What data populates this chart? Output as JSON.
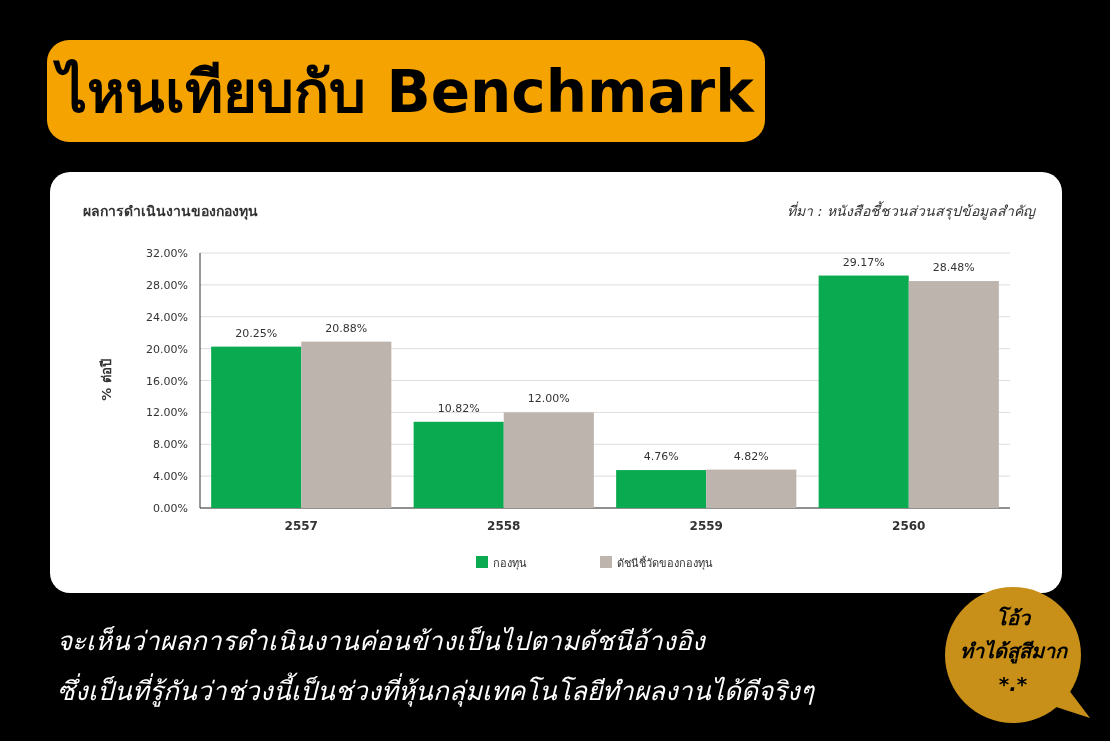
{
  "chart_data": {
    "type": "bar",
    "title": "ไหนเทียบกับ Benchmark",
    "subtitle": "ผลการดำเนินงานของกองทุน",
    "ylabel": "% ต่อปี",
    "categories": [
      "2557",
      "2558",
      "2559",
      "2560"
    ],
    "series": [
      {
        "name": "กองทุน",
        "color": "#0aaa50",
        "values": [
          20.25,
          10.82,
          4.76,
          29.17
        ],
        "value_labels": [
          "20.25%",
          "10.82%",
          "4.76%",
          "29.17%"
        ]
      },
      {
        "name": "ดัชนีชี้วัดของกองทุน",
        "color": "#bdb4ae",
        "values": [
          20.88,
          12.0,
          4.82,
          28.48
        ],
        "value_labels": [
          "20.88%",
          "12.00%",
          "4.82%",
          "28.48%"
        ]
      }
    ],
    "ylim": [
      0,
      32
    ],
    "yticks": [
      {
        "value": 0,
        "label": "0.00%"
      },
      {
        "value": 4,
        "label": "4.00%"
      },
      {
        "value": 8,
        "label": "8.00%"
      },
      {
        "value": 12,
        "label": "12.00%"
      },
      {
        "value": 16,
        "label": "16.00%"
      },
      {
        "value": 20,
        "label": "20.00%"
      },
      {
        "value": 24,
        "label": "24.00%"
      },
      {
        "value": 28,
        "label": "28.00%"
      },
      {
        "value": 32,
        "label": "32.00%"
      }
    ],
    "grid": "y",
    "legend": "bottom",
    "annotations": [
      "ที่มา : หนังสือชี้ชวนส่วนสรุปข้อมูลสำคัญ",
      "จะเห็นว่าผลการดำเนินงานค่อนข้างเป็นไปตามดัชนีอ้างอิง",
      "ซึ่งเป็นที่รู้กันว่าช่วงนี้เป็นช่วงที่หุ้นกลุ่มเทคโนโลยีทำผลงานได้ดีจริงๆ",
      "โอ้ว",
      "ทำได้สูสีมาก",
      "*.*"
    ]
  }
}
